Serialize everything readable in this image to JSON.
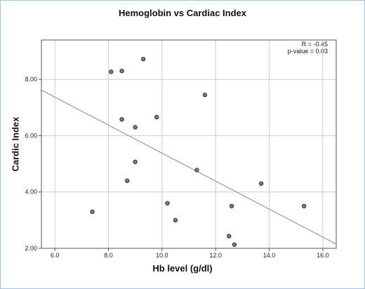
{
  "chart_data": {
    "type": "scatter",
    "title": "Hemoglobin vs Cardiac Index",
    "xlabel": "Hb level (g/dl)",
    "ylabel": "Cardic Index",
    "xlim": [
      5.5,
      16.5
    ],
    "ylim": [
      2.0,
      9.4
    ],
    "xticks": [
      "6.0",
      "8.0",
      "10.0",
      "12.0",
      "14.0",
      "16.0"
    ],
    "yticks": [
      "2.00",
      "4.00",
      "6.00",
      "8.00"
    ],
    "grid": true,
    "annotations": {
      "r": "R =  -0.45",
      "p": "p-value = 0.03"
    },
    "points": [
      {
        "x": 7.4,
        "y": 3.3
      },
      {
        "x": 8.1,
        "y": 8.27
      },
      {
        "x": 8.5,
        "y": 8.3
      },
      {
        "x": 8.5,
        "y": 6.58
      },
      {
        "x": 8.7,
        "y": 4.4
      },
      {
        "x": 9.0,
        "y": 6.3
      },
      {
        "x": 9.0,
        "y": 5.07
      },
      {
        "x": 9.3,
        "y": 8.72
      },
      {
        "x": 9.8,
        "y": 6.66
      },
      {
        "x": 10.2,
        "y": 3.6
      },
      {
        "x": 10.5,
        "y": 3.0
      },
      {
        "x": 11.3,
        "y": 4.78
      },
      {
        "x": 11.6,
        "y": 7.45
      },
      {
        "x": 12.5,
        "y": 2.43
      },
      {
        "x": 12.6,
        "y": 3.5
      },
      {
        "x": 12.7,
        "y": 2.13
      },
      {
        "x": 13.7,
        "y": 4.3
      },
      {
        "x": 15.3,
        "y": 3.5
      }
    ],
    "fit_line": [
      {
        "x": 5.5,
        "y": 7.62
      },
      {
        "x": 16.5,
        "y": 2.15
      }
    ]
  }
}
